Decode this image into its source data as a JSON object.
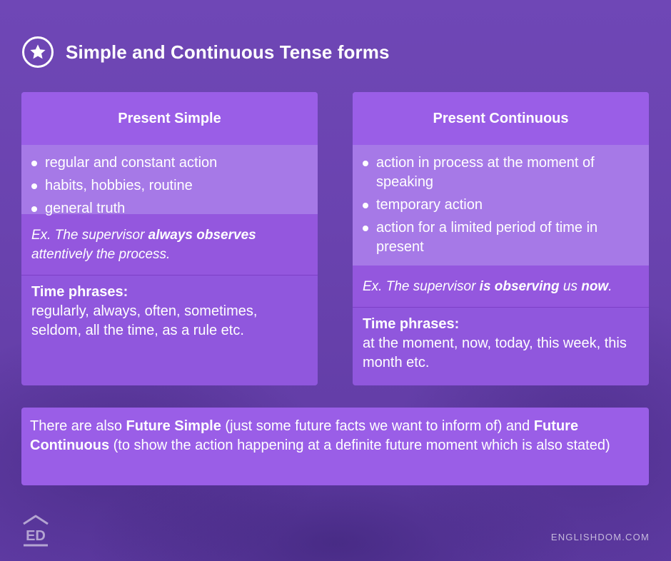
{
  "title": "Simple and Continuous Tense forms",
  "present_simple": {
    "heading": "Present Simple",
    "bullets": [
      "regular and constant action",
      "habits, hobbies, routine",
      "general truth"
    ],
    "example": {
      "prefix": "Ex. The supervisor ",
      "bold": "always observes",
      "suffix": " attentively the process."
    },
    "time_label": "Time phrases:",
    "time_text": "regularly, always, often, sometimes, seldom, all the time, as a rule etc."
  },
  "present_continuous": {
    "heading": "Present Continuous",
    "bullets": [
      "action in process at the moment of speaking",
      "temporary action",
      "action for a limited period of time in present"
    ],
    "example": {
      "prefix": "Ex. The supervisor ",
      "bold1": "is observing",
      "middle": " us ",
      "bold2": "now",
      "suffix": "."
    },
    "time_label": "Time phrases:",
    "time_text": "at the moment, now, today, this week, this month etc."
  },
  "note": {
    "part1": "There are also ",
    "bold1": "Future Simple",
    "part2": " (just some future facts we want to inform of) and ",
    "bold2": "Future Continuous",
    "part3": " (to show the action happening at a definite future moment which is also stated)"
  },
  "brand": {
    "logo_text": "ED",
    "site": "ENGLISHDOM.COM"
  },
  "icons": {
    "title_icon": "star-icon",
    "logo_icon": "house-icon"
  }
}
